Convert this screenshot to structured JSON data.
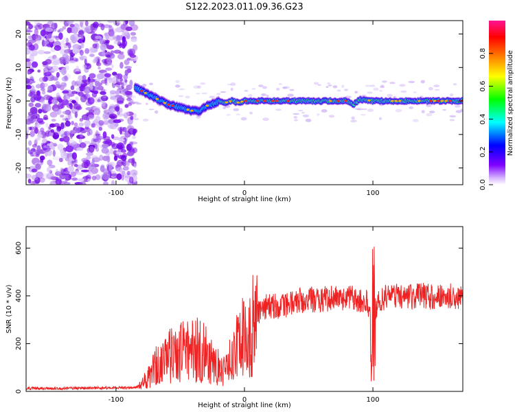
{
  "title": "S122.2023.011.09.36.G23",
  "chart_data": [
    {
      "type": "heatmap",
      "xlabel": "Height of straight line (km)",
      "ylabel": "Frequency (Hz)",
      "xlim": [
        -170,
        170
      ],
      "ylim": [
        -25,
        24
      ],
      "xticks": [
        -100,
        0,
        100
      ],
      "xtick_labels": [
        "-100",
        "0",
        "100"
      ],
      "yticks": [
        -20,
        -10,
        0,
        10,
        20
      ],
      "ytick_labels": [
        "-20",
        "-10",
        "0",
        "10",
        "20"
      ],
      "grid": false,
      "noise_region_x": [
        -170,
        -85
      ],
      "signal_ridge": {
        "x": [
          -85,
          -80,
          -75,
          -70,
          -65,
          -60,
          -55,
          -50,
          -45,
          -40,
          -35,
          -30,
          -25,
          -20,
          -15,
          -10,
          -5,
          0,
          10,
          20,
          40,
          60,
          80,
          85,
          90,
          100,
          120,
          140,
          170
        ],
        "frequency": [
          4,
          3,
          2,
          1,
          0,
          -1,
          -1.5,
          -2,
          -2.5,
          -3,
          -3,
          -1.5,
          -1,
          0,
          -0.5,
          0,
          -0.5,
          0,
          0,
          0,
          0,
          0,
          0,
          -1,
          0.5,
          0,
          0,
          0,
          0
        ]
      },
      "colorbar": {
        "label": "Normalized spectral amplitude",
        "range": [
          0.0,
          1.0
        ],
        "ticks": [
          0.0,
          0.2,
          0.4,
          0.6,
          0.8
        ],
        "tick_labels": [
          "0.0",
          "0.2",
          "0.4",
          "0.6",
          "0.8"
        ],
        "colors": [
          "#ffffff",
          "#7f00ff",
          "#0000ff",
          "#00ffff",
          "#00ff00",
          "#ffff00",
          "#ff7f00",
          "#ff0000",
          "#ff1493"
        ]
      }
    },
    {
      "type": "line",
      "xlabel": "Height of straight line (km)",
      "ylabel": "SNR (10 * v/v)",
      "xlim": [
        -170,
        170
      ],
      "ylim": [
        0,
        690
      ],
      "xticks": [
        -100,
        0,
        100
      ],
      "xtick_labels": [
        "-100",
        "0",
        "100"
      ],
      "yticks": [
        0,
        200,
        400,
        600
      ],
      "ytick_labels": [
        "0",
        "200",
        "400",
        "600"
      ],
      "grid": false,
      "series": [
        {
          "color": "#ee2222",
          "x": [
            -170,
            -150,
            -130,
            -110,
            -95,
            -85,
            -80,
            -75,
            -70,
            -65,
            -60,
            -55,
            -50,
            -45,
            -40,
            -35,
            -30,
            -25,
            -20,
            -15,
            -10,
            -5,
            0,
            5,
            10,
            15,
            20,
            30,
            40,
            50,
            60,
            70,
            80,
            90,
            95,
            100,
            105,
            110,
            120,
            130,
            140,
            150,
            160,
            170
          ],
          "y": [
            12,
            12,
            13,
            14,
            15,
            16,
            30,
            60,
            100,
            120,
            140,
            155,
            170,
            160,
            180,
            175,
            160,
            130,
            110,
            80,
            140,
            210,
            240,
            280,
            320,
            350,
            355,
            360,
            375,
            385,
            385,
            390,
            390,
            385,
            390,
            300,
            390,
            395,
            400,
            395,
            400,
            395,
            400,
            395
          ]
        }
      ]
    }
  ]
}
